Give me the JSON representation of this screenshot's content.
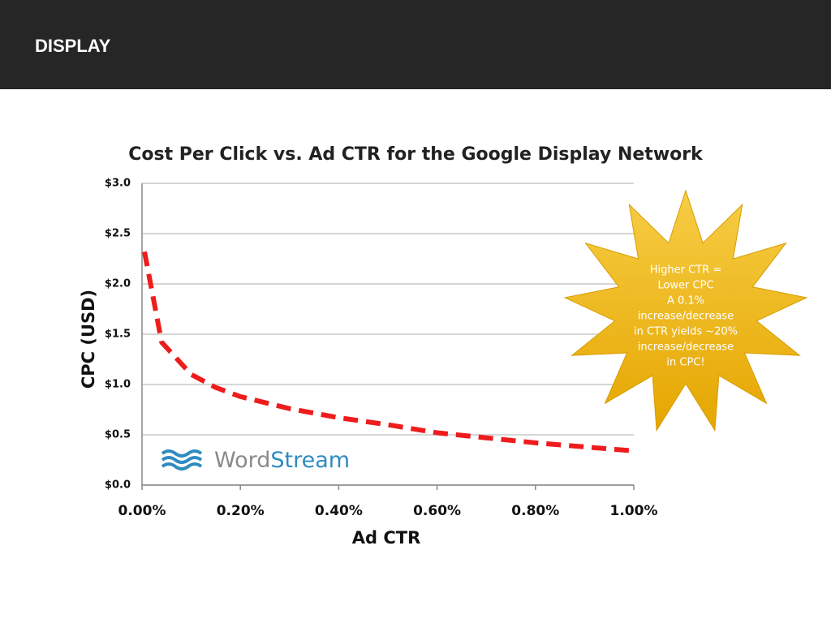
{
  "header": {
    "title": "DISPLAY"
  },
  "chart_data": {
    "type": "line",
    "title": "Cost Per Click vs. Ad CTR for the Google Display Network",
    "x_label": "Ad CTR",
    "y_label": "CPC (USD)",
    "x": [
      0.005,
      0.04,
      0.1,
      0.15,
      0.2,
      0.3,
      0.4,
      0.5,
      0.6,
      0.7,
      0.8,
      0.9,
      1.0
    ],
    "series": [
      {
        "name": "CPC",
        "color": "#ee1c1c",
        "values": [
          2.32,
          1.42,
          1.1,
          0.97,
          0.88,
          0.76,
          0.67,
          0.6,
          0.52,
          0.47,
          0.42,
          0.38,
          0.34
        ]
      }
    ],
    "xlim": [
      0,
      1
    ],
    "ylim": [
      0,
      3
    ],
    "xticks": [
      {
        "value": 0,
        "label": "0.00%"
      },
      {
        "value": 0.2,
        "label": "0.20%"
      },
      {
        "value": 0.4,
        "label": "0.40%"
      },
      {
        "value": 0.6,
        "label": "0.60%"
      },
      {
        "value": 0.8,
        "label": "0.80%"
      },
      {
        "value": 1,
        "label": "1.00%"
      }
    ],
    "yticks": [
      {
        "value": 0,
        "label": "$0.0"
      },
      {
        "value": 0.5,
        "label": "$0.5"
      },
      {
        "value": 1,
        "label": "$1.0"
      },
      {
        "value": 1.5,
        "label": "$1.5"
      },
      {
        "value": 2,
        "label": "$2.0"
      },
      {
        "value": 2.5,
        "label": "$2.5"
      },
      {
        "value": 3,
        "label": "$3.0"
      }
    ],
    "grid": true,
    "annotation": [
      "Higher CTR =",
      "Lower CPC",
      "A 0.1%",
      "increase/decrease",
      "in CTR yields ~20%",
      "increase/decrease",
      "in CPC!"
    ],
    "logo": [
      "Word",
      "Stream"
    ]
  }
}
